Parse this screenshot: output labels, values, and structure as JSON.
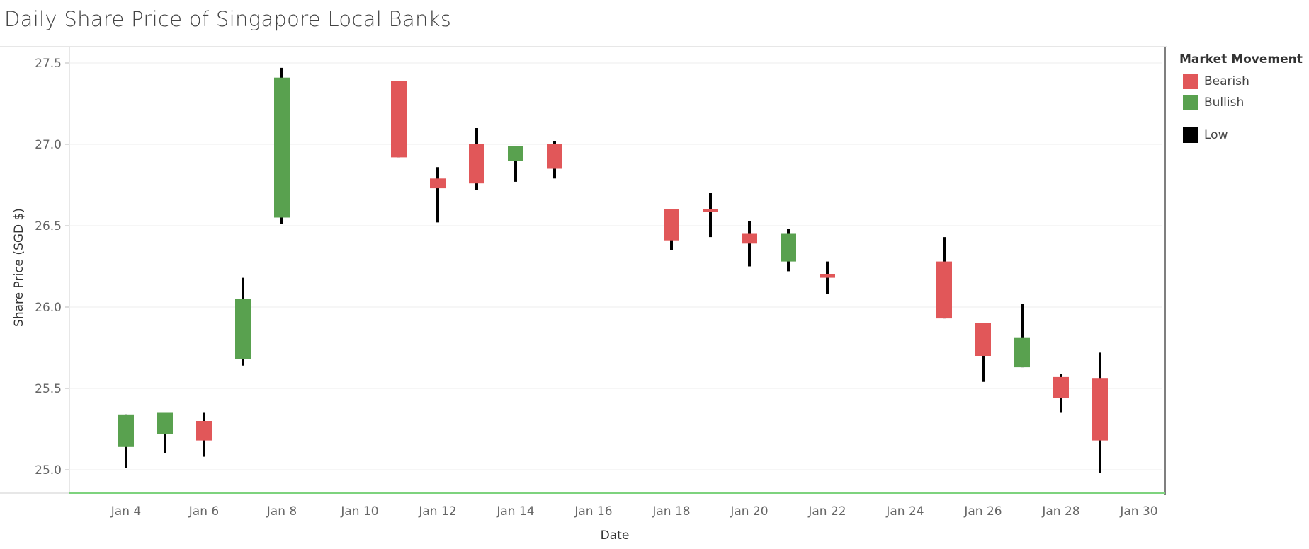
{
  "chart_data": {
    "type": "candlestick",
    "title": "Daily Share Price of  Singapore Local Banks",
    "xlabel": "Date",
    "ylabel": "Share Price (SGD $)",
    "ylim": [
      24.85,
      27.6
    ],
    "xlim": [
      "2021-01-03",
      "2021-01-30"
    ],
    "yticks": [
      25.0,
      25.5,
      26.0,
      26.5,
      27.0,
      27.5
    ],
    "xticks": [
      "2021-01-04",
      "2021-01-06",
      "2021-01-08",
      "2021-01-10",
      "2021-01-12",
      "2021-01-14",
      "2021-01-16",
      "2021-01-18",
      "2021-01-20",
      "2021-01-22",
      "2021-01-24",
      "2021-01-26",
      "2021-01-28",
      "2021-01-30"
    ],
    "xtick_labels": [
      "Jan 4",
      "Jan 6",
      "Jan 8",
      "Jan 10",
      "Jan 12",
      "Jan 14",
      "Jan 16",
      "Jan 18",
      "Jan 20",
      "Jan 22",
      "Jan 24",
      "Jan 26",
      "Jan 28",
      "Jan 30"
    ],
    "grid": true,
    "legend_position": "right",
    "legend": {
      "title": "Market Movement",
      "items": [
        {
          "label": "Bearish",
          "color": "#e15759"
        },
        {
          "label": "Bullish",
          "color": "#59a14f"
        },
        {
          "label": "Low",
          "color": "#000000"
        }
      ]
    },
    "series": [
      {
        "date": "2021-01-04",
        "open": 25.14,
        "close": 25.34,
        "high": 25.34,
        "low": 25.01,
        "movement": "Bullish"
      },
      {
        "date": "2021-01-05",
        "open": 25.22,
        "close": 25.35,
        "high": 25.35,
        "low": 25.1,
        "movement": "Bullish"
      },
      {
        "date": "2021-01-06",
        "open": 25.3,
        "close": 25.18,
        "high": 25.35,
        "low": 25.08,
        "movement": "Bearish"
      },
      {
        "date": "2021-01-07",
        "open": 25.68,
        "close": 26.05,
        "high": 26.18,
        "low": 25.64,
        "movement": "Bullish"
      },
      {
        "date": "2021-01-08",
        "open": 26.55,
        "close": 27.41,
        "high": 27.47,
        "low": 26.51,
        "movement": "Bullish"
      },
      {
        "date": "2021-01-11",
        "open": 27.39,
        "close": 26.92,
        "high": 27.39,
        "low": 26.92,
        "movement": "Bearish"
      },
      {
        "date": "2021-01-12",
        "open": 26.79,
        "close": 26.73,
        "high": 26.86,
        "low": 26.52,
        "movement": "Bearish"
      },
      {
        "date": "2021-01-13",
        "open": 27.0,
        "close": 26.76,
        "high": 27.1,
        "low": 26.72,
        "movement": "Bearish"
      },
      {
        "date": "2021-01-14",
        "open": 26.9,
        "close": 26.99,
        "high": 26.99,
        "low": 26.77,
        "movement": "Bullish"
      },
      {
        "date": "2021-01-15",
        "open": 27.0,
        "close": 26.85,
        "high": 27.02,
        "low": 26.79,
        "movement": "Bearish"
      },
      {
        "date": "2021-01-18",
        "open": 26.6,
        "close": 26.41,
        "high": 26.6,
        "low": 26.35,
        "movement": "Bearish"
      },
      {
        "date": "2021-01-19",
        "open": 26.6,
        "close": 26.59,
        "high": 26.7,
        "low": 26.43,
        "movement": "Bearish"
      },
      {
        "date": "2021-01-20",
        "open": 26.45,
        "close": 26.39,
        "high": 26.53,
        "low": 26.25,
        "movement": "Bearish"
      },
      {
        "date": "2021-01-21",
        "open": 26.28,
        "close": 26.45,
        "high": 26.48,
        "low": 26.22,
        "movement": "Bullish"
      },
      {
        "date": "2021-01-22",
        "open": 26.2,
        "close": 26.18,
        "high": 26.28,
        "low": 26.08,
        "movement": "Bearish"
      },
      {
        "date": "2021-01-25",
        "open": 26.28,
        "close": 25.93,
        "high": 26.43,
        "low": 25.93,
        "movement": "Bearish"
      },
      {
        "date": "2021-01-26",
        "open": 25.9,
        "close": 25.7,
        "high": 25.9,
        "low": 25.54,
        "movement": "Bearish"
      },
      {
        "date": "2021-01-27",
        "open": 25.63,
        "close": 25.81,
        "high": 26.02,
        "low": 25.63,
        "movement": "Bullish"
      },
      {
        "date": "2021-01-28",
        "open": 25.57,
        "close": 25.44,
        "high": 25.59,
        "low": 25.35,
        "movement": "Bearish"
      },
      {
        "date": "2021-01-29",
        "open": 25.56,
        "close": 25.18,
        "high": 25.72,
        "low": 24.98,
        "movement": "Bearish"
      }
    ]
  }
}
